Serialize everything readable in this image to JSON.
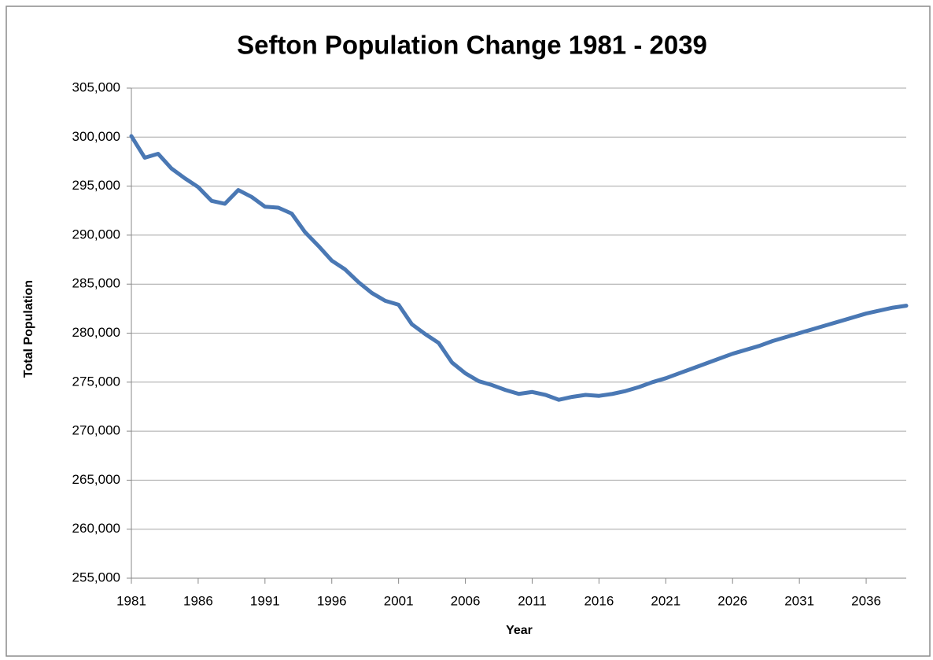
{
  "chart_data": {
    "type": "line",
    "title": "Sefton Population Change 1981 - 2039",
    "xlabel": "Year",
    "ylabel": "Total Population",
    "x": [
      1981,
      1982,
      1983,
      1984,
      1985,
      1986,
      1987,
      1988,
      1989,
      1990,
      1991,
      1992,
      1993,
      1994,
      1995,
      1996,
      1997,
      1998,
      1999,
      2000,
      2001,
      2002,
      2003,
      2004,
      2005,
      2006,
      2007,
      2008,
      2009,
      2010,
      2011,
      2012,
      2013,
      2014,
      2015,
      2016,
      2017,
      2018,
      2019,
      2020,
      2021,
      2022,
      2023,
      2024,
      2025,
      2026,
      2027,
      2028,
      2029,
      2030,
      2031,
      2032,
      2033,
      2034,
      2035,
      2036,
      2037,
      2038,
      2039
    ],
    "series": [
      {
        "name": "Total Population",
        "color": "#4a78b4",
        "values": [
          300100,
          297900,
          298300,
          296800,
          295800,
          294900,
          293500,
          293200,
          294600,
          293900,
          292900,
          292800,
          292200,
          290300,
          288900,
          287400,
          286500,
          285200,
          284100,
          283300,
          282900,
          280900,
          279900,
          279000,
          277000,
          275900,
          275100,
          274700,
          274200,
          273800,
          274000,
          273700,
          273200,
          273500,
          273700,
          273600,
          273800,
          274100,
          274500,
          275000,
          275400,
          275900,
          276400,
          276900,
          277400,
          277900,
          278300,
          278700,
          279200,
          279600,
          280000,
          280400,
          280800,
          281200,
          281600,
          282000,
          282300,
          282600,
          282800
        ]
      }
    ],
    "xlim": [
      1981,
      2039
    ],
    "xticks": [
      1981,
      1986,
      1991,
      1996,
      2001,
      2006,
      2011,
      2016,
      2021,
      2026,
      2031,
      2036
    ],
    "ylim": [
      255000,
      305000
    ],
    "yticks": [
      {
        "value": 255000,
        "label": "255,000"
      },
      {
        "value": 260000,
        "label": "260,000"
      },
      {
        "value": 265000,
        "label": "265,000"
      },
      {
        "value": 270000,
        "label": "270,000"
      },
      {
        "value": 275000,
        "label": "275,000"
      },
      {
        "value": 280000,
        "label": "280,000"
      },
      {
        "value": 285000,
        "label": "285,000"
      },
      {
        "value": 290000,
        "label": "290,000"
      },
      {
        "value": 295000,
        "label": "295,000"
      },
      {
        "value": 300000,
        "label": "300,000"
      },
      {
        "value": 305000,
        "label": "305,000"
      }
    ],
    "grid": true
  }
}
